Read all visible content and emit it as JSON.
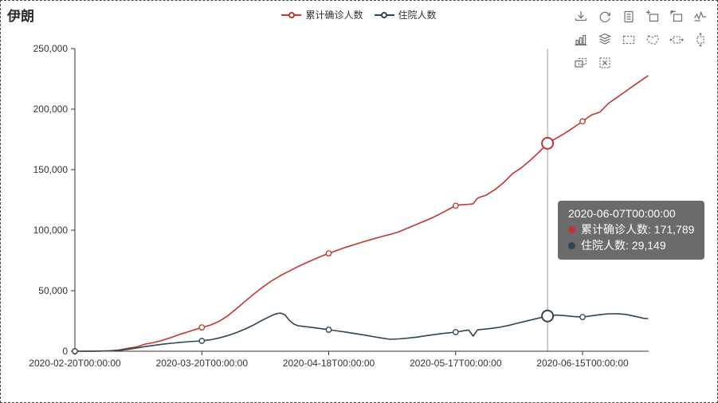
{
  "title": "伊朗",
  "legend": {
    "items": [
      {
        "label": "累计确诊人数",
        "color": "#c23531"
      },
      {
        "label": "住院人数",
        "color": "#2f4554"
      }
    ]
  },
  "toolbar": {
    "icons": [
      "save-as-image",
      "restore",
      "data-view",
      "data-zoom",
      "data-zoom-reset",
      "switch-to-line",
      "switch-to-bar",
      "stack",
      "rect-select",
      "polygon-select",
      "horizontal-select",
      "vertical-select",
      "keep-selection",
      "clear-selection"
    ]
  },
  "tooltip": {
    "title": "2020-06-07T00:00:00",
    "rows": [
      {
        "text": "累计确诊人数: 171,789",
        "color": "#c23531"
      },
      {
        "text": "住院人数: 29,149",
        "color": "#2f4554"
      }
    ]
  },
  "chart_data": {
    "type": "line",
    "title": "伊朗",
    "xlabel": "",
    "ylabel": "",
    "grid": false,
    "legend_position": "top-center",
    "x_axis_type": "time",
    "x_range": [
      "2020-02-20",
      "2020-06-30"
    ],
    "x_tick_labels": [
      "2020-02-20T00:00:00",
      "2020-03-20T00:00:00",
      "2020-04-18T00:00:00",
      "2020-05-17T00:00:00",
      "2020-06-15T00:00:00"
    ],
    "y_ticks": [
      0,
      50000,
      100000,
      150000,
      200000,
      250000
    ],
    "ylim": [
      0,
      250000
    ],
    "marker_dates": [
      "2020-02-20",
      "2020-03-20",
      "2020-04-18",
      "2020-05-17",
      "2020-06-15"
    ],
    "highlight": {
      "date": "2020-06-07",
      "points": [
        {
          "series": 0,
          "value": 171789
        },
        {
          "series": 1,
          "value": 29149
        }
      ]
    },
    "series": [
      {
        "name": "累计确诊人数",
        "color": "#c23531",
        "points": [
          [
            "2020-02-20",
            2
          ],
          [
            "2020-02-22",
            28
          ],
          [
            "2020-02-24",
            61
          ],
          [
            "2020-02-26",
            139
          ],
          [
            "2020-02-28",
            388
          ],
          [
            "2020-03-01",
            978
          ],
          [
            "2020-03-03",
            2336
          ],
          [
            "2020-03-05",
            3513
          ],
          [
            "2020-03-07",
            5823
          ],
          [
            "2020-03-09",
            7161
          ],
          [
            "2020-03-11",
            9000
          ],
          [
            "2020-03-13",
            11364
          ],
          [
            "2020-03-15",
            13938
          ],
          [
            "2020-03-17",
            16169
          ],
          [
            "2020-03-20",
            19644
          ],
          [
            "2020-03-22",
            21638
          ],
          [
            "2020-03-24",
            24811
          ],
          [
            "2020-03-26",
            29406
          ],
          [
            "2020-03-28",
            35408
          ],
          [
            "2020-03-30",
            41495
          ],
          [
            "2020-04-01",
            47593
          ],
          [
            "2020-04-03",
            53183
          ],
          [
            "2020-04-05",
            58226
          ],
          [
            "2020-04-07",
            62589
          ],
          [
            "2020-04-09",
            66220
          ],
          [
            "2020-04-11",
            70029
          ],
          [
            "2020-04-13",
            73303
          ],
          [
            "2020-04-15",
            76389
          ],
          [
            "2020-04-17",
            79494
          ],
          [
            "2020-04-18",
            80868
          ],
          [
            "2020-04-20",
            83505
          ],
          [
            "2020-04-22",
            85996
          ],
          [
            "2020-04-24",
            88194
          ],
          [
            "2020-04-26",
            90481
          ],
          [
            "2020-04-28",
            92584
          ],
          [
            "2020-04-30",
            94640
          ],
          [
            "2020-05-02",
            96448
          ],
          [
            "2020-05-04",
            98647
          ],
          [
            "2020-05-06",
            101650
          ],
          [
            "2020-05-08",
            104691
          ],
          [
            "2020-05-10",
            107603
          ],
          [
            "2020-05-12",
            110767
          ],
          [
            "2020-05-14",
            114533
          ],
          [
            "2020-05-16",
            118392
          ],
          [
            "2020-05-17",
            120198
          ],
          [
            "2020-05-18",
            120900
          ],
          [
            "2020-05-20",
            121400
          ],
          [
            "2020-05-21",
            121800
          ],
          [
            "2020-05-22",
            126500
          ],
          [
            "2020-05-24",
            129000
          ],
          [
            "2020-05-26",
            133500
          ],
          [
            "2020-05-28",
            139500
          ],
          [
            "2020-05-30",
            146668
          ],
          [
            "2020-06-01",
            151466
          ],
          [
            "2020-06-03",
            157562
          ],
          [
            "2020-06-05",
            164270
          ],
          [
            "2020-06-07",
            171789
          ],
          [
            "2020-06-09",
            175927
          ],
          [
            "2020-06-11",
            180156
          ],
          [
            "2020-06-13",
            184955
          ],
          [
            "2020-06-15",
            189876
          ],
          [
            "2020-06-17",
            195051
          ],
          [
            "2020-06-19",
            197647
          ],
          [
            "2020-06-21",
            204952
          ],
          [
            "2020-06-23",
            209970
          ],
          [
            "2020-06-25",
            215096
          ],
          [
            "2020-06-27",
            220180
          ],
          [
            "2020-06-29",
            225205
          ],
          [
            "2020-06-30",
            227662
          ]
        ]
      },
      {
        "name": "住院人数",
        "color": "#2f4554",
        "points": [
          [
            "2020-02-20",
            2
          ],
          [
            "2020-02-24",
            40
          ],
          [
            "2020-02-28",
            250
          ],
          [
            "2020-03-01",
            700
          ],
          [
            "2020-03-03",
            1500
          ],
          [
            "2020-03-05",
            2600
          ],
          [
            "2020-03-07",
            3800
          ],
          [
            "2020-03-09",
            4800
          ],
          [
            "2020-03-11",
            5800
          ],
          [
            "2020-03-13",
            6600
          ],
          [
            "2020-03-15",
            7300
          ],
          [
            "2020-03-17",
            7900
          ],
          [
            "2020-03-20",
            8550
          ],
          [
            "2020-03-22",
            9500
          ],
          [
            "2020-03-24",
            11000
          ],
          [
            "2020-03-26",
            13000
          ],
          [
            "2020-03-28",
            15500
          ],
          [
            "2020-03-30",
            18500
          ],
          [
            "2020-04-01",
            22000
          ],
          [
            "2020-04-03",
            26000
          ],
          [
            "2020-04-05",
            29500
          ],
          [
            "2020-04-06",
            31000
          ],
          [
            "2020-04-07",
            31500
          ],
          [
            "2020-04-08",
            30000
          ],
          [
            "2020-04-09",
            25500
          ],
          [
            "2020-04-10",
            22500
          ],
          [
            "2020-04-11",
            21000
          ],
          [
            "2020-04-13",
            20200
          ],
          [
            "2020-04-15",
            19300
          ],
          [
            "2020-04-17",
            18300
          ],
          [
            "2020-04-18",
            17763
          ],
          [
            "2020-04-20",
            16800
          ],
          [
            "2020-04-22",
            15700
          ],
          [
            "2020-04-24",
            14600
          ],
          [
            "2020-04-26",
            13400
          ],
          [
            "2020-04-28",
            12200
          ],
          [
            "2020-04-30",
            11000
          ],
          [
            "2020-05-02",
            9900
          ],
          [
            "2020-05-04",
            10200
          ],
          [
            "2020-05-06",
            10800
          ],
          [
            "2020-05-08",
            11600
          ],
          [
            "2020-05-10",
            12700
          ],
          [
            "2020-05-12",
            13700
          ],
          [
            "2020-05-14",
            14700
          ],
          [
            "2020-05-17",
            15789
          ],
          [
            "2020-05-19",
            17000
          ],
          [
            "2020-05-20",
            17500
          ],
          [
            "2020-05-21",
            12500
          ],
          [
            "2020-05-22",
            17600
          ],
          [
            "2020-05-25",
            18800
          ],
          [
            "2020-05-27",
            19800
          ],
          [
            "2020-05-29",
            21200
          ],
          [
            "2020-05-31",
            23000
          ],
          [
            "2020-06-02",
            24800
          ],
          [
            "2020-06-04",
            26500
          ],
          [
            "2020-06-07",
            29149
          ],
          [
            "2020-06-09",
            29900
          ],
          [
            "2020-06-11",
            29400
          ],
          [
            "2020-06-13",
            28700
          ],
          [
            "2020-06-15",
            28200
          ],
          [
            "2020-06-17",
            29200
          ],
          [
            "2020-06-19",
            30200
          ],
          [
            "2020-06-21",
            30900
          ],
          [
            "2020-06-23",
            31000
          ],
          [
            "2020-06-25",
            30400
          ],
          [
            "2020-06-27",
            28800
          ],
          [
            "2020-06-29",
            27200
          ],
          [
            "2020-06-30",
            27000
          ]
        ]
      }
    ]
  }
}
